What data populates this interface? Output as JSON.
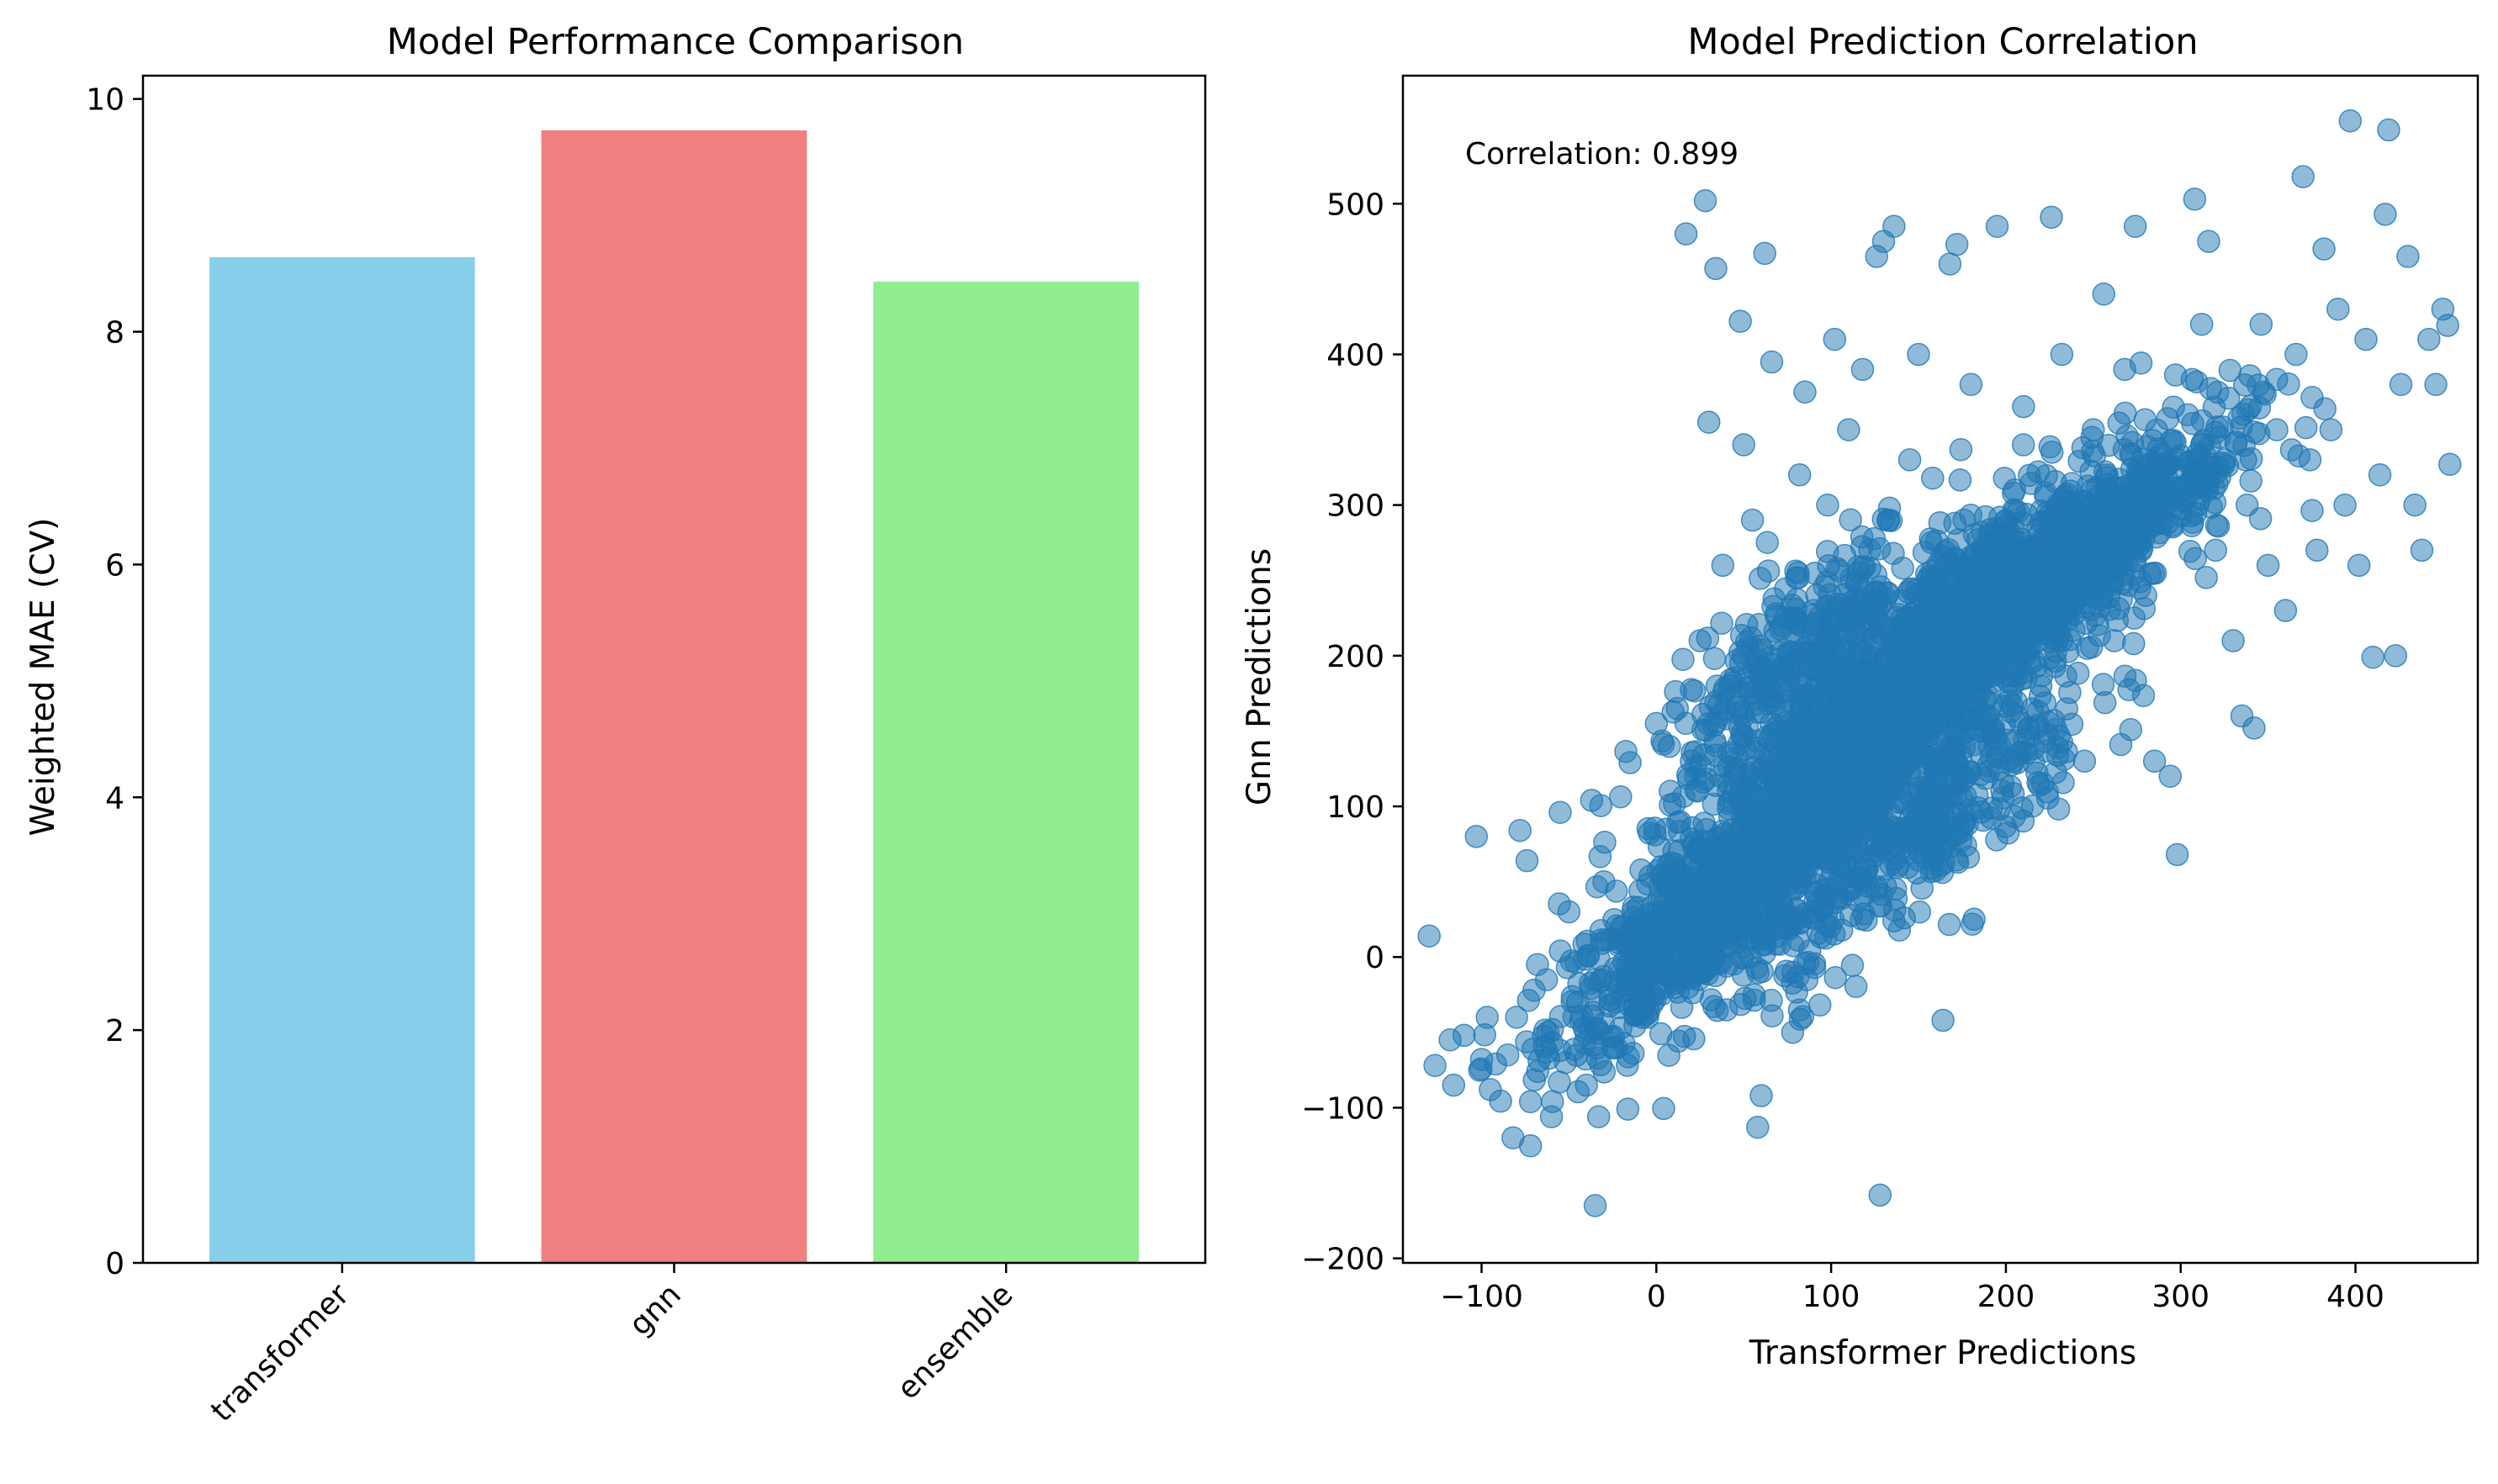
{
  "chart_data": [
    {
      "type": "bar",
      "title": "Model Performance Comparison",
      "xlabel": "",
      "ylabel": "Weighted MAE (CV)",
      "categories": [
        "transformer",
        "gnn",
        "ensemble"
      ],
      "values": [
        8.64,
        9.73,
        8.43
      ],
      "colors": [
        "#87ceeb",
        "#f08080",
        "#90ee90"
      ],
      "ylim": [
        0,
        10.2
      ],
      "yticks": [
        0,
        2,
        4,
        6,
        8,
        10
      ],
      "xtick_rotation": 45,
      "grid": false
    },
    {
      "type": "scatter",
      "title": "Model Prediction Correlation",
      "xlabel": "Transformer Predictions",
      "ylabel": "Gnn Predictions",
      "annotation": "Correlation: 0.899",
      "xlim": [
        -145,
        470
      ],
      "ylim": [
        -203,
        585
      ],
      "xticks": [
        -100,
        0,
        100,
        200,
        300,
        400
      ],
      "yticks": [
        -200,
        -100,
        0,
        100,
        200,
        300,
        400,
        500
      ],
      "color": "#1f77b4",
      "alpha": 0.5,
      "grid": false,
      "points": [
        [
          -130,
          14
        ],
        [
          -118,
          -55
        ],
        [
          -116,
          -85
        ],
        [
          -110,
          -52
        ],
        [
          -103,
          80
        ],
        [
          -100,
          -68
        ],
        [
          -95,
          -88
        ],
        [
          -92,
          -71
        ],
        [
          -85,
          -65
        ],
        [
          -82,
          -120
        ],
        [
          -80,
          -40
        ],
        [
          -78,
          84
        ],
        [
          -74,
          64
        ],
        [
          -72,
          -96
        ],
        [
          -70,
          -22
        ],
        [
          -68,
          -5
        ],
        [
          -60,
          -106
        ],
        [
          -55,
          96
        ],
        [
          -52,
          -70
        ],
        [
          -50,
          30
        ],
        [
          -45,
          -30
        ],
        [
          -40,
          -85
        ],
        [
          -37,
          104
        ],
        [
          -35,
          -165
        ],
        [
          -33,
          -106
        ],
        [
          -30,
          50
        ],
        [
          -25,
          -60
        ],
        [
          -20,
          20
        ],
        [
          -15,
          129
        ],
        [
          -10,
          10
        ],
        [
          -5,
          -40
        ],
        [
          0,
          155
        ],
        [
          3,
          60
        ],
        [
          8,
          110
        ],
        [
          12,
          165
        ],
        [
          17,
          480
        ],
        [
          20,
          130
        ],
        [
          25,
          210
        ],
        [
          28,
          502
        ],
        [
          30,
          355
        ],
        [
          34,
          457
        ],
        [
          38,
          260
        ],
        [
          42,
          180
        ],
        [
          48,
          422
        ],
        [
          50,
          340
        ],
        [
          55,
          290
        ],
        [
          58,
          -113
        ],
        [
          60,
          -92
        ],
        [
          62,
          467
        ],
        [
          66,
          395
        ],
        [
          70,
          150
        ],
        [
          72,
          220
        ],
        [
          75,
          100
        ],
        [
          78,
          -50
        ],
        [
          82,
          320
        ],
        [
          85,
          375
        ],
        [
          90,
          230
        ],
        [
          95,
          200
        ],
        [
          98,
          300
        ],
        [
          102,
          410
        ],
        [
          105,
          130
        ],
        [
          108,
          60
        ],
        [
          110,
          350
        ],
        [
          115,
          250
        ],
        [
          118,
          390
        ],
        [
          122,
          180
        ],
        [
          126,
          465
        ],
        [
          128,
          -158
        ],
        [
          130,
          475
        ],
        [
          133,
          290
        ],
        [
          136,
          485
        ],
        [
          140,
          210
        ],
        [
          145,
          330
        ],
        [
          150,
          400
        ],
        [
          155,
          240
        ],
        [
          160,
          120
        ],
        [
          164,
          -42
        ],
        [
          168,
          460
        ],
        [
          172,
          473
        ],
        [
          176,
          290
        ],
        [
          180,
          380
        ],
        [
          185,
          200
        ],
        [
          190,
          160
        ],
        [
          195,
          485
        ],
        [
          200,
          260
        ],
        [
          205,
          310
        ],
        [
          210,
          340
        ],
        [
          215,
          230
        ],
        [
          220,
          180
        ],
        [
          226,
          491
        ],
        [
          232,
          400
        ],
        [
          238,
          270
        ],
        [
          245,
          130
        ],
        [
          250,
          350
        ],
        [
          256,
          440
        ],
        [
          262,
          210
        ],
        [
          268,
          390
        ],
        [
          274,
          485
        ],
        [
          280,
          240
        ],
        [
          285,
          130
        ],
        [
          290,
          310
        ],
        [
          294,
          120
        ],
        [
          298,
          68
        ],
        [
          304,
          360
        ],
        [
          308,
          503
        ],
        [
          312,
          420
        ],
        [
          316,
          475
        ],
        [
          320,
          270
        ],
        [
          325,
          330
        ],
        [
          330,
          210
        ],
        [
          335,
          160
        ],
        [
          338,
          300
        ],
        [
          342,
          152
        ],
        [
          346,
          420
        ],
        [
          350,
          260
        ],
        [
          355,
          350
        ],
        [
          360,
          230
        ],
        [
          366,
          400
        ],
        [
          370,
          518
        ],
        [
          374,
          330
        ],
        [
          378,
          270
        ],
        [
          382,
          470
        ],
        [
          386,
          350
        ],
        [
          390,
          430
        ],
        [
          394,
          300
        ],
        [
          397,
          555
        ],
        [
          402,
          260
        ],
        [
          406,
          410
        ],
        [
          410,
          199
        ],
        [
          414,
          320
        ],
        [
          417,
          493
        ],
        [
          419,
          549
        ],
        [
          423,
          200
        ],
        [
          426,
          380
        ],
        [
          430,
          465
        ],
        [
          434,
          300
        ],
        [
          438,
          270
        ],
        [
          442,
          410
        ],
        [
          446,
          380
        ],
        [
          450,
          430
        ],
        [
          454,
          327
        ]
      ],
      "dense_clusters": [
        {
          "x": 30,
          "y": 30,
          "sx": 45,
          "sy": 45,
          "n": 700
        },
        {
          "x": 110,
          "y": 130,
          "sx": 55,
          "sy": 60,
          "n": 900
        },
        {
          "x": 190,
          "y": 230,
          "sx": 55,
          "sy": 55,
          "n": 900
        },
        {
          "x": 150,
          "y": 80,
          "sx": 50,
          "sy": 45,
          "n": 350
        },
        {
          "x": 80,
          "y": 200,
          "sx": 40,
          "sy": 45,
          "n": 300
        },
        {
          "x": 260,
          "y": 280,
          "sx": 45,
          "sy": 45,
          "n": 350
        }
      ]
    }
  ]
}
